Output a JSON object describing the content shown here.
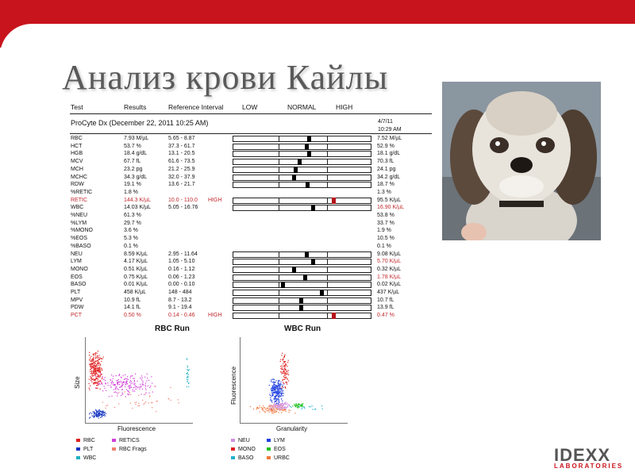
{
  "slide": {
    "title": "Анализ крови Кайлы"
  },
  "report": {
    "headers": {
      "test": "Test",
      "results": "Results",
      "reference": "Reference Interval",
      "low": "LOW",
      "normal": "NORMAL",
      "high": "HIGH"
    },
    "run_label": "ProCyte Dx (December 22, 2011 10:25 AM)",
    "prior_date": "4/7/11",
    "prior_time": "10:29 AM",
    "rows": [
      {
        "test": "RBC",
        "result": "7.93 M/µL",
        "ref": "5.65 - 8.87",
        "flag": "",
        "prior": "7.52 M/µL",
        "gauge": 0.55,
        "abnormal": false,
        "prior_abnormal": false
      },
      {
        "test": "HCT",
        "result": "53.7 %",
        "ref": "37.3 - 61.7",
        "flag": "",
        "prior": "52.9 %",
        "gauge": 0.53,
        "abnormal": false,
        "prior_abnormal": false
      },
      {
        "test": "HGB",
        "result": "18.4 g/dL",
        "ref": "13.1 - 20.5",
        "flag": "",
        "prior": "18.1 g/dL",
        "gauge": 0.55,
        "abnormal": false,
        "prior_abnormal": false
      },
      {
        "test": "MCV",
        "result": "67.7 fL",
        "ref": "61.6 - 73.5",
        "flag": "",
        "prior": "70.3 fL",
        "gauge": 0.48,
        "abnormal": false,
        "prior_abnormal": false
      },
      {
        "test": "MCH",
        "result": "23.2 pg",
        "ref": "21.2 - 25.9",
        "flag": "",
        "prior": "24.1 pg",
        "gauge": 0.45,
        "abnormal": false,
        "prior_abnormal": false
      },
      {
        "test": "MCHC",
        "result": "34.3 g/dL",
        "ref": "32.0 - 37.9",
        "flag": "",
        "prior": "34.2 g/dL",
        "gauge": 0.44,
        "abnormal": false,
        "prior_abnormal": false
      },
      {
        "test": "RDW",
        "result": "19.1 %",
        "ref": "13.6 - 21.7",
        "flag": "",
        "prior": "18.7 %",
        "gauge": 0.54,
        "abnormal": false,
        "prior_abnormal": false
      },
      {
        "test": "%RETIC",
        "result": "1.8 %",
        "ref": "",
        "flag": "",
        "prior": "1.3 %",
        "gauge": null,
        "abnormal": false,
        "prior_abnormal": false
      },
      {
        "test": "RETIC",
        "result": "144.3 K/µL",
        "ref": "10.0 - 110.0",
        "flag": "HIGH",
        "prior": "95.5 K/µL",
        "gauge": 0.73,
        "abnormal": true,
        "prior_abnormal": false
      },
      {
        "test": "WBC",
        "result": "14.03 K/µL",
        "ref": "5.05 - 16.76",
        "flag": "",
        "prior": "16.90 K/µL",
        "gauge": 0.58,
        "abnormal": false,
        "prior_abnormal": true
      },
      {
        "test": "%NEU",
        "result": "61.3 %",
        "ref": "",
        "flag": "",
        "prior": "53.8 %",
        "gauge": null,
        "abnormal": false,
        "prior_abnormal": false
      },
      {
        "test": "%LYM",
        "result": "29.7 %",
        "ref": "",
        "flag": "",
        "prior": "33.7 %",
        "gauge": null,
        "abnormal": false,
        "prior_abnormal": false
      },
      {
        "test": "%MONO",
        "result": "3.6 %",
        "ref": "",
        "flag": "",
        "prior": "1.9 %",
        "gauge": null,
        "abnormal": false,
        "prior_abnormal": false
      },
      {
        "test": "%EOS",
        "result": "5.3 %",
        "ref": "",
        "flag": "",
        "prior": "10.5 %",
        "gauge": null,
        "abnormal": false,
        "prior_abnormal": false
      },
      {
        "test": "%BASO",
        "result": "0.1 %",
        "ref": "",
        "flag": "",
        "prior": "0.1 %",
        "gauge": null,
        "abnormal": false,
        "prior_abnormal": false
      },
      {
        "test": "NEU",
        "result": "8.59 K/µL",
        "ref": "2.95 - 11.64",
        "flag": "",
        "prior": "9.08 K/µL",
        "gauge": 0.53,
        "abnormal": false,
        "prior_abnormal": false
      },
      {
        "test": "LYM",
        "result": "4.17 K/µL",
        "ref": "1.05 - 5.10",
        "flag": "",
        "prior": "5.70 K/µL",
        "gauge": 0.58,
        "abnormal": false,
        "prior_abnormal": true
      },
      {
        "test": "MONO",
        "result": "0.51 K/µL",
        "ref": "0.16 - 1.12",
        "flag": "",
        "prior": "0.32 K/µL",
        "gauge": 0.44,
        "abnormal": false,
        "prior_abnormal": false
      },
      {
        "test": "EOS",
        "result": "0.75 K/µL",
        "ref": "0.06 - 1.23",
        "flag": "",
        "prior": "1.78 K/µL",
        "gauge": 0.52,
        "abnormal": false,
        "prior_abnormal": true
      },
      {
        "test": "BASO",
        "result": "0.01 K/µL",
        "ref": "0.00 - 0.10",
        "flag": "",
        "prior": "0.02 K/µL",
        "gauge": 0.36,
        "abnormal": false,
        "prior_abnormal": false
      },
      {
        "test": "PLT",
        "result": "458 K/µL",
        "ref": "148 - 484",
        "flag": "",
        "prior": "437 K/µL",
        "gauge": 0.64,
        "abnormal": false,
        "prior_abnormal": false
      },
      {
        "test": "MPV",
        "result": "10.9 fL",
        "ref": "8.7 - 13.2",
        "flag": "",
        "prior": "10.7 fL",
        "gauge": 0.49,
        "abnormal": false,
        "prior_abnormal": false
      },
      {
        "test": "PDW",
        "result": "14.1 fL",
        "ref": "9.1 - 19.4",
        "flag": "",
        "prior": "13.9 fL",
        "gauge": 0.49,
        "abnormal": false,
        "prior_abnormal": false
      },
      {
        "test": "PCT",
        "result": "0.50 %",
        "ref": "0.14 - 0.46",
        "flag": "HIGH",
        "prior": "0.47 %",
        "gauge": 0.73,
        "abnormal": true,
        "prior_abnormal": true
      }
    ]
  },
  "rbc_plot": {
    "title": "RBC Run",
    "ylabel": "Size",
    "xlabel": "Fluorescence",
    "legend": [
      {
        "label": "RBC",
        "color": "#e02020"
      },
      {
        "label": "RETICS",
        "color": "#d040d8"
      },
      {
        "label": "PLT",
        "color": "#1030c0"
      },
      {
        "label": "RBC Frags",
        "color": "#f08070"
      },
      {
        "label": "WBC",
        "color": "#20b0c0"
      }
    ]
  },
  "wbc_plot": {
    "title": "WBC Run",
    "ylabel": "Fluorescence",
    "xlabel": "Granularity",
    "legend": [
      {
        "label": "NEU",
        "color": "#d090e0"
      },
      {
        "label": "LYM",
        "color": "#2040e0"
      },
      {
        "label": "MONO",
        "color": "#e02020"
      },
      {
        "label": "EOS",
        "color": "#20c020"
      },
      {
        "label": "BASO",
        "color": "#20b0d0"
      },
      {
        "label": "URBC",
        "color": "#f07840"
      }
    ]
  },
  "logo": {
    "main": "IDEXX",
    "sub": "LABORATORIES"
  },
  "colors": {
    "brand_red": "#c8141c",
    "title_gray": "#5a5a5a",
    "abnormal": "#c0282d"
  }
}
